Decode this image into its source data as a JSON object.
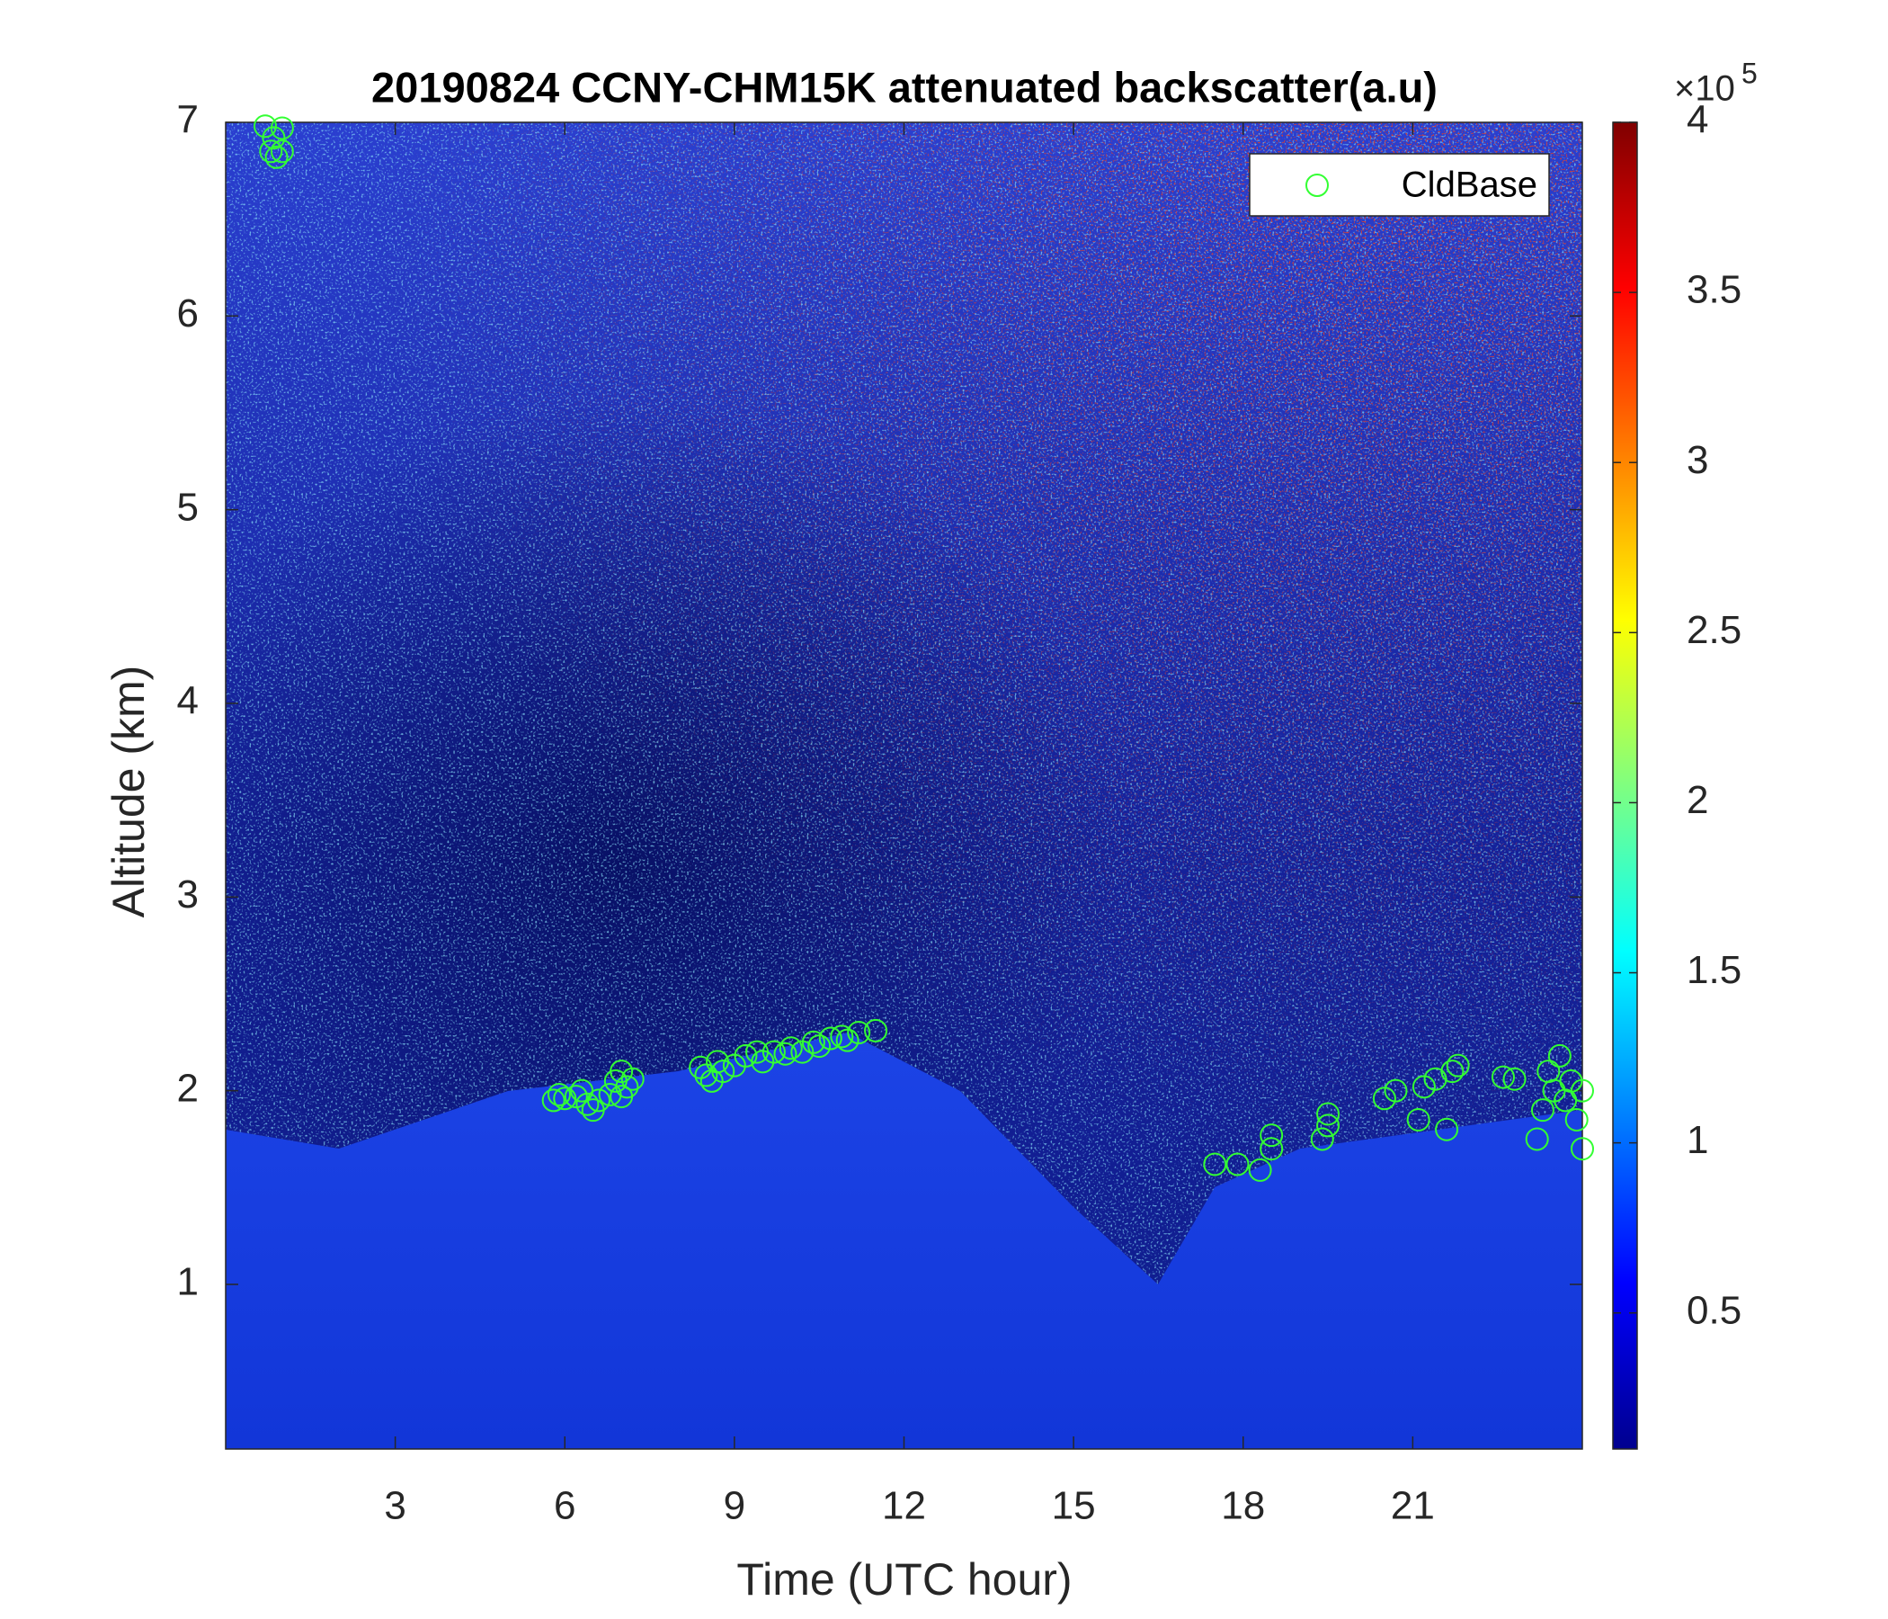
{
  "chart_data": {
    "type": "scatter",
    "title": "20190824 CCNY-CHM15K attenuated backscatter(a.u)",
    "x_label": "Time (UTC hour)",
    "y_label": "Altitude (km)",
    "xlim": [
      0,
      24
    ],
    "xticks": [
      3,
      6,
      9,
      12,
      15,
      18,
      21
    ],
    "ylim": [
      0.15,
      7
    ],
    "yticks": [
      1,
      2,
      3,
      4,
      5,
      6,
      7
    ],
    "legend": "top-right",
    "colorbar": {
      "lim": [
        0.1,
        4
      ],
      "ticks": [
        0.5,
        1,
        1.5,
        2,
        2.5,
        3,
        3.5,
        4
      ],
      "multiplier": "×10",
      "exponent": 5
    },
    "series": [
      {
        "name": "CldBase",
        "color": "#33ff33",
        "x": [
          0.7,
          0.85,
          1.0,
          0.8,
          0.9,
          1.0,
          5.8,
          5.9,
          6.0,
          6.2,
          6.3,
          6.4,
          6.5,
          6.6,
          6.8,
          6.9,
          7.0,
          7.1,
          7.2,
          7.0,
          8.4,
          8.5,
          8.6,
          8.7,
          8.8,
          9.0,
          9.2,
          9.4,
          9.5,
          9.7,
          9.9,
          10.0,
          10.2,
          10.4,
          10.5,
          10.7,
          10.9,
          11.0,
          11.2,
          11.5,
          17.5,
          17.9,
          18.3,
          18.5,
          18.5,
          19.4,
          19.5,
          19.5,
          20.5,
          20.7,
          21.1,
          21.2,
          21.4,
          21.6,
          21.7,
          21.8,
          22.6,
          22.8,
          23.2,
          23.3,
          23.4,
          23.5,
          23.6,
          23.7,
          23.8,
          23.9,
          24.0,
          24.0
        ],
        "values": [
          6.98,
          6.92,
          6.97,
          6.85,
          6.82,
          6.85,
          1.95,
          1.98,
          1.96,
          1.97,
          2.0,
          1.93,
          1.9,
          1.95,
          1.98,
          2.05,
          1.97,
          2.02,
          2.06,
          2.1,
          2.12,
          2.08,
          2.05,
          2.15,
          2.1,
          2.13,
          2.18,
          2.2,
          2.15,
          2.2,
          2.19,
          2.22,
          2.2,
          2.25,
          2.23,
          2.27,
          2.28,
          2.26,
          2.3,
          2.31,
          1.62,
          1.62,
          1.59,
          1.7,
          1.77,
          1.75,
          1.82,
          1.88,
          1.96,
          2.0,
          1.85,
          2.02,
          2.06,
          1.8,
          2.1,
          2.13,
          2.07,
          2.06,
          1.75,
          1.9,
          2.1,
          2.0,
          2.18,
          1.95,
          2.05,
          1.85,
          1.7,
          2.0
        ]
      }
    ]
  }
}
